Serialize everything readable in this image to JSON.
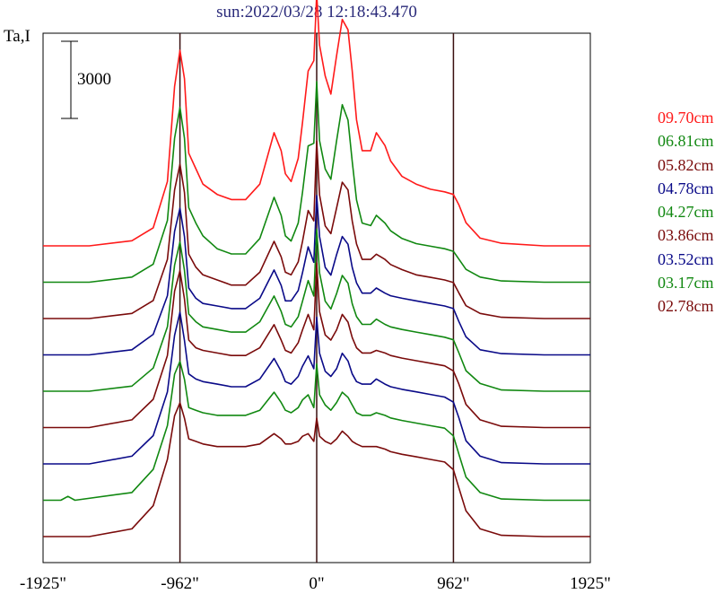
{
  "chart_data": {
    "type": "line",
    "title": "sun:2022/03/28 12:18:43.470",
    "ylabel": "Ta,I",
    "scale_bar_label": "3000",
    "scale_bar_value": 3000,
    "x_ticks": [
      "-1925\"",
      "-962\"",
      "0\"",
      "962\"",
      "1925\""
    ],
    "x_tick_values": [
      -1925,
      -962,
      0,
      962,
      1925
    ],
    "xlim": [
      -1925,
      1925
    ],
    "vertical_lines": [
      -962,
      0,
      962
    ],
    "colors": {
      "red": "#ff1a1a",
      "green": "#118811",
      "darkred": "#7a0b0b",
      "blue": "#0a0a88",
      "title": "#2a2a7a"
    },
    "series": [
      {
        "name": "09.70cm",
        "color": "#ff1a1a",
        "offset": 8,
        "x": [
          -1925,
          -1600,
          -1300,
          -1150,
          -1050,
          -1000,
          -962,
          -930,
          -900,
          -850,
          -800,
          -700,
          -600,
          -500,
          -400,
          -300,
          -250,
          -220,
          -180,
          -130,
          -100,
          -60,
          -20,
          0,
          20,
          60,
          100,
          140,
          180,
          220,
          250,
          280,
          320,
          380,
          420,
          480,
          520,
          600,
          700,
          800,
          900,
          962,
          1000,
          1050,
          1150,
          1300,
          1600,
          1925
        ],
        "y": [
          0,
          0,
          200,
          700,
          2500,
          6200,
          7600,
          6500,
          3600,
          3000,
          2400,
          2000,
          1800,
          1800,
          2400,
          4400,
          3700,
          2800,
          2500,
          3400,
          4800,
          6800,
          7200,
          9800,
          7800,
          6600,
          5900,
          7400,
          8800,
          8400,
          6800,
          4900,
          3700,
          3700,
          4400,
          3900,
          3300,
          2700,
          2400,
          2200,
          2100,
          2000,
          1600,
          900,
          300,
          100,
          0,
          0
        ]
      },
      {
        "name": "06.81cm",
        "color": "#118811",
        "offset": 7,
        "x": [
          -1925,
          -1600,
          -1300,
          -1150,
          -1050,
          -1000,
          -962,
          -930,
          -900,
          -850,
          -800,
          -700,
          -600,
          -500,
          -400,
          -300,
          -250,
          -220,
          -180,
          -130,
          -100,
          -60,
          -20,
          0,
          20,
          60,
          100,
          140,
          180,
          220,
          250,
          280,
          320,
          380,
          420,
          480,
          520,
          600,
          700,
          800,
          900,
          962,
          1000,
          1050,
          1150,
          1300,
          1600,
          1925
        ],
        "y": [
          0,
          0,
          200,
          700,
          2400,
          5600,
          6800,
          5600,
          2900,
          2300,
          1800,
          1300,
          1100,
          1100,
          1700,
          3300,
          2600,
          1800,
          1600,
          2300,
          3500,
          5300,
          5400,
          7800,
          5500,
          4400,
          4000,
          5500,
          6900,
          6300,
          4700,
          3200,
          2300,
          2200,
          2600,
          2300,
          2000,
          1700,
          1500,
          1400,
          1300,
          1200,
          900,
          500,
          200,
          50,
          0,
          0
        ]
      },
      {
        "name": "05.82cm",
        "color": "#7a0b0b",
        "offset": 6,
        "x": [
          -1925,
          -1600,
          -1300,
          -1150,
          -1050,
          -1000,
          -962,
          -930,
          -900,
          -850,
          -800,
          -700,
          -600,
          -500,
          -400,
          -300,
          -250,
          -220,
          -180,
          -130,
          -100,
          -60,
          -20,
          0,
          20,
          60,
          100,
          140,
          180,
          220,
          250,
          280,
          320,
          380,
          420,
          480,
          520,
          600,
          700,
          800,
          900,
          962,
          1000,
          1050,
          1150,
          1300,
          1600,
          1925
        ],
        "y": [
          0,
          0,
          200,
          700,
          2300,
          5000,
          6000,
          4900,
          2500,
          2000,
          1700,
          1500,
          1300,
          1300,
          1800,
          3000,
          2400,
          1800,
          1700,
          2200,
          3000,
          4200,
          3800,
          6900,
          4800,
          3600,
          3300,
          4300,
          5300,
          5000,
          3800,
          2900,
          2300,
          2300,
          2500,
          2300,
          2100,
          1900,
          1700,
          1600,
          1500,
          1400,
          1000,
          500,
          200,
          50,
          0,
          0
        ]
      },
      {
        "name": "04.78cm",
        "color": "#0a0a88",
        "offset": 5,
        "x": [
          -1925,
          -1600,
          -1300,
          -1150,
          -1050,
          -1000,
          -962,
          -930,
          -900,
          -850,
          -800,
          -700,
          -600,
          -500,
          -400,
          -300,
          -250,
          -220,
          -180,
          -130,
          -100,
          -60,
          -20,
          0,
          20,
          60,
          100,
          140,
          180,
          220,
          250,
          280,
          320,
          380,
          420,
          480,
          520,
          600,
          700,
          800,
          900,
          962,
          1000,
          1050,
          1150,
          1300,
          1600,
          1925
        ],
        "y": [
          0,
          0,
          200,
          800,
          2300,
          4800,
          5700,
          4600,
          2600,
          2200,
          2000,
          1900,
          1800,
          1800,
          2200,
          3300,
          2700,
          2100,
          2100,
          2500,
          3200,
          4200,
          3600,
          6200,
          4600,
          3400,
          3100,
          3900,
          4600,
          4300,
          3400,
          2800,
          2400,
          2400,
          2600,
          2400,
          2300,
          2200,
          2100,
          2000,
          1900,
          1800,
          1300,
          700,
          200,
          50,
          0,
          0
        ]
      },
      {
        "name": "04.27cm",
        "color": "#118811",
        "offset": 4,
        "x": [
          -1925,
          -1600,
          -1300,
          -1150,
          -1050,
          -1000,
          -962,
          -930,
          -900,
          -850,
          -800,
          -700,
          -600,
          -500,
          -400,
          -300,
          -250,
          -220,
          -180,
          -130,
          -100,
          -60,
          -20,
          0,
          20,
          60,
          100,
          140,
          180,
          220,
          250,
          280,
          320,
          380,
          420,
          480,
          520,
          600,
          700,
          800,
          900,
          962,
          1000,
          1050,
          1150,
          1300,
          1600,
          1925
        ],
        "y": [
          0,
          0,
          200,
          900,
          2500,
          4900,
          5800,
          4700,
          3000,
          2700,
          2500,
          2400,
          2300,
          2300,
          2700,
          3700,
          3100,
          2600,
          2500,
          2900,
          3500,
          4300,
          3700,
          6300,
          4600,
          3500,
          3200,
          3800,
          4500,
          4200,
          3400,
          2900,
          2600,
          2600,
          2800,
          2600,
          2500,
          2400,
          2300,
          2200,
          2100,
          2000,
          1500,
          800,
          300,
          50,
          0,
          0
        ]
      },
      {
        "name": "03.86cm",
        "color": "#7a0b0b",
        "offset": 3,
        "x": [
          -1925,
          -1600,
          -1300,
          -1150,
          -1050,
          -1000,
          -962,
          -930,
          -900,
          -850,
          -800,
          -700,
          -600,
          -500,
          -400,
          -300,
          -250,
          -220,
          -180,
          -130,
          -100,
          -60,
          -20,
          0,
          20,
          60,
          100,
          140,
          180,
          220,
          250,
          280,
          320,
          380,
          420,
          480,
          520,
          600,
          700,
          800,
          900,
          962,
          1000,
          1050,
          1150,
          1300,
          1600,
          1925
        ],
        "y": [
          0,
          0,
          300,
          1100,
          2800,
          5300,
          6100,
          5000,
          3400,
          3100,
          3000,
          2900,
          2800,
          2800,
          3100,
          4000,
          3400,
          3000,
          2900,
          3300,
          3800,
          4400,
          3800,
          6400,
          4500,
          3600,
          3400,
          3800,
          4400,
          4100,
          3500,
          3100,
          2900,
          2900,
          3000,
          2900,
          2800,
          2700,
          2600,
          2500,
          2400,
          2200,
          1700,
          900,
          300,
          50,
          0,
          0
        ]
      },
      {
        "name": "03.52cm",
        "color": "#0a0a88",
        "offset": 2,
        "x": [
          -1925,
          -1600,
          -1300,
          -1150,
          -1050,
          -1000,
          -962,
          -930,
          -900,
          -850,
          -800,
          -700,
          -600,
          -500,
          -400,
          -300,
          -250,
          -220,
          -180,
          -130,
          -100,
          -60,
          -20,
          0,
          20,
          60,
          100,
          140,
          180,
          220,
          250,
          280,
          320,
          380,
          420,
          480,
          520,
          600,
          700,
          800,
          900,
          962,
          1000,
          1050,
          1150,
          1300,
          1600,
          1925
        ],
        "y": [
          0,
          0,
          300,
          1100,
          2800,
          5000,
          5900,
          4800,
          3500,
          3300,
          3200,
          3100,
          3000,
          3000,
          3300,
          4100,
          3600,
          3200,
          3100,
          3400,
          3800,
          4200,
          3700,
          5700,
          4300,
          3600,
          3400,
          3700,
          4300,
          4000,
          3500,
          3200,
          3100,
          3100,
          3300,
          3100,
          3000,
          2900,
          2800,
          2700,
          2600,
          2400,
          1800,
          900,
          300,
          50,
          0,
          0
        ]
      },
      {
        "name": "03.17cm",
        "color": "#118811",
        "offset": 1,
        "x": [
          -1925,
          -1800,
          -1750,
          -1700,
          -1300,
          -1150,
          -1050,
          -1000,
          -962,
          -930,
          -900,
          -850,
          -800,
          -700,
          -600,
          -500,
          -400,
          -300,
          -250,
          -220,
          -180,
          -130,
          -100,
          -60,
          -20,
          0,
          20,
          60,
          100,
          140,
          180,
          220,
          250,
          280,
          320,
          380,
          420,
          480,
          520,
          600,
          700,
          800,
          900,
          962,
          1000,
          1050,
          1150,
          1300,
          1600,
          1925
        ],
        "y": [
          0,
          0,
          150,
          0,
          300,
          1200,
          2900,
          4900,
          5400,
          4700,
          3600,
          3500,
          3400,
          3300,
          3300,
          3300,
          3500,
          4200,
          3800,
          3500,
          3400,
          3600,
          3900,
          4100,
          3600,
          5300,
          4100,
          3700,
          3500,
          3800,
          4200,
          4000,
          3700,
          3400,
          3300,
          3300,
          3400,
          3300,
          3200,
          3100,
          3000,
          2900,
          2800,
          2500,
          1800,
          900,
          300,
          50,
          0,
          0
        ]
      },
      {
        "name": "02.78cm",
        "color": "#7a0b0b",
        "offset": 0,
        "x": [
          -1925,
          -1600,
          -1300,
          -1150,
          -1050,
          -1000,
          -962,
          -930,
          -900,
          -850,
          -800,
          -700,
          -600,
          -500,
          -400,
          -300,
          -250,
          -220,
          -180,
          -130,
          -100,
          -60,
          -20,
          0,
          20,
          60,
          100,
          140,
          180,
          220,
          250,
          280,
          320,
          380,
          420,
          480,
          520,
          600,
          700,
          800,
          900,
          962,
          1000,
          1050,
          1150,
          1300,
          1600,
          1925
        ],
        "y": [
          0,
          0,
          300,
          1200,
          3000,
          4700,
          5200,
          4600,
          3800,
          3700,
          3600,
          3500,
          3500,
          3500,
          3600,
          4000,
          3800,
          3600,
          3600,
          3700,
          3900,
          4000,
          3700,
          4600,
          3900,
          3700,
          3600,
          3800,
          4100,
          3900,
          3700,
          3600,
          3500,
          3500,
          3500,
          3400,
          3300,
          3200,
          3100,
          3000,
          2900,
          2600,
          1900,
          1000,
          300,
          50,
          0,
          0
        ]
      }
    ],
    "legend_position": "right"
  }
}
